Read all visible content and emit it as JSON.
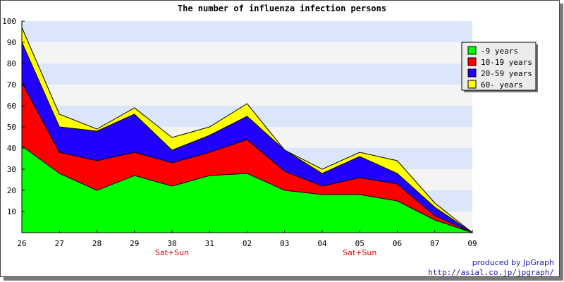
{
  "chart_data": {
    "type": "area",
    "stacked": true,
    "title": "The number of influenza infection persons",
    "xlabel": "",
    "ylabel": "",
    "categories": [
      "26",
      "27",
      "28",
      "29",
      "30",
      "31",
      "02",
      "03",
      "04",
      "05",
      "06",
      "07",
      "09"
    ],
    "x_annotations": [
      {
        "category": "30",
        "text": "Sat+Sun"
      },
      {
        "category": "05",
        "text": "Sat+Sun"
      }
    ],
    "ylim": [
      0,
      100
    ],
    "yticks": [
      10,
      20,
      30,
      40,
      50,
      60,
      70,
      80,
      90,
      100
    ],
    "grid": "horizontal bands",
    "band_colors": [
      "#f4f4f4",
      "#dce6fb"
    ],
    "legend_position": "top-right",
    "series": [
      {
        "name": "-9 years",
        "color": "#00ff00",
        "values": [
          41,
          28,
          20,
          27,
          22,
          27,
          28,
          20,
          18,
          18,
          15,
          6,
          0
        ]
      },
      {
        "name": "10-19 years",
        "color": "#ff0000",
        "values": [
          30,
          10,
          14,
          11,
          11,
          11,
          16,
          9,
          4,
          8,
          8,
          2,
          0
        ]
      },
      {
        "name": "20-59 years",
        "color": "#2200ff",
        "values": [
          19,
          12,
          14,
          18,
          6,
          8,
          11,
          10,
          6,
          10,
          5,
          4,
          0
        ]
      },
      {
        "name": "60- years",
        "color": "#ffff00",
        "values": [
          7,
          6,
          1,
          3,
          6,
          4,
          6,
          0,
          2,
          2,
          6,
          2,
          0
        ]
      }
    ]
  },
  "credits": {
    "line1": "produced by JpGraph",
    "line2": "http://asial.co.jp/jpgraph/"
  }
}
